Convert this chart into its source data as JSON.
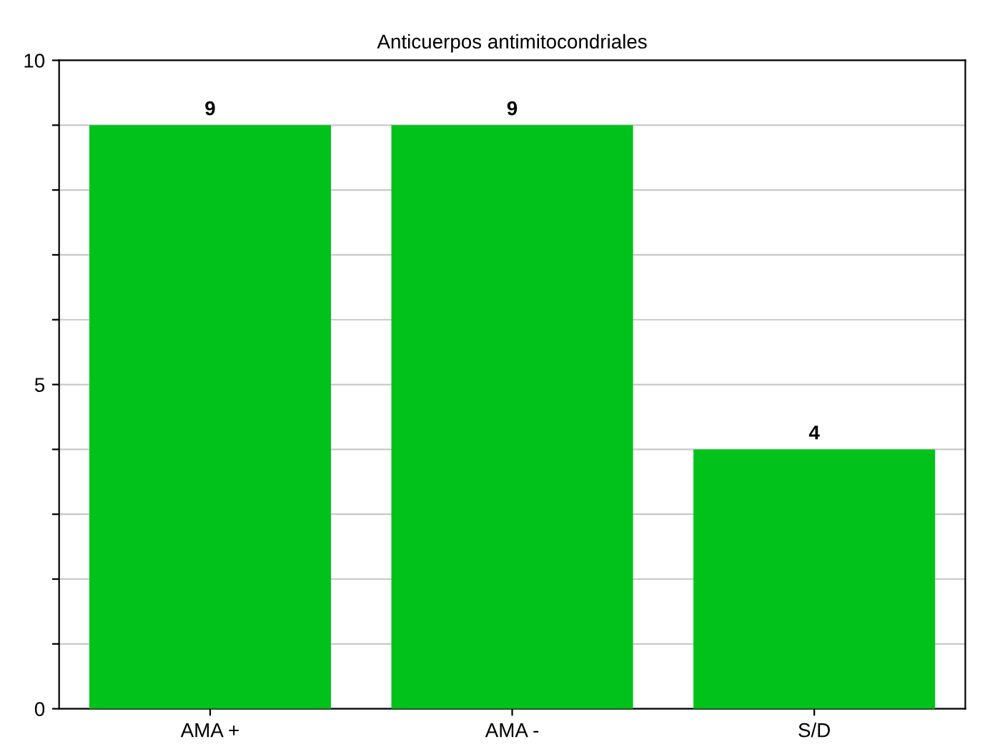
{
  "chart_data": {
    "type": "bar",
    "title": "Anticuerpos antimitocondriales",
    "categories": [
      "AMA +",
      "AMA -",
      "S/D"
    ],
    "values": [
      9,
      9,
      4
    ],
    "color": "#00c21a",
    "ylim": [
      0,
      10
    ],
    "yticks": [
      0,
      {
        "value": 1,
        "label": null
      },
      {
        "value": 2,
        "label": null
      },
      {
        "value": 3,
        "label": null
      },
      {
        "value": 4,
        "label": null
      },
      5,
      {
        "value": 6,
        "label": null
      },
      {
        "value": 7,
        "label": null
      },
      {
        "value": 8,
        "label": null
      },
      {
        "value": 9,
        "label": null
      },
      10
    ],
    "grid": "y",
    "data_labels": true
  }
}
